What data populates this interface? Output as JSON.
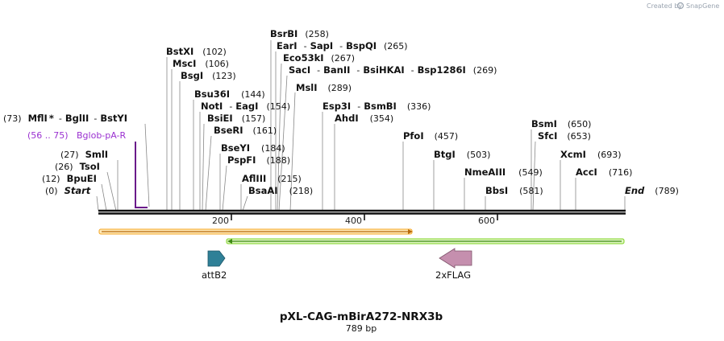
{
  "credit": {
    "text": "Created by",
    "brand": "SnapGene"
  },
  "map": {
    "name": "pXL-CAG-mBirA272-NRX3b",
    "length_label": "789 bp",
    "length": 789,
    "ticks": [
      "200",
      "400",
      "600"
    ]
  },
  "colors": {
    "orf_orange": "#f5a623",
    "orf_green": "#7ed321",
    "attB2": "#2f8097",
    "flag": "#c58fae",
    "feature_purple": "#9a30d0",
    "bracket": "#6a1a8a"
  },
  "sites": {
    "bsrbi": {
      "name": "BsrBI",
      "pos": "(258)"
    },
    "eari": {
      "name": "EarI",
      "pos": "(265)"
    },
    "sapi": {
      "name": "SapI"
    },
    "bspqi": {
      "name": "BspQI"
    },
    "eco53ki": {
      "name": "Eco53kI",
      "pos": "(267)"
    },
    "saci": {
      "name": "SacI",
      "pos": "(269)"
    },
    "banii": {
      "name": "BanII"
    },
    "bsihkai": {
      "name": "BsiHKAI"
    },
    "bsp1286i": {
      "name": "Bsp1286I"
    },
    "bstxi": {
      "name": "BstXI",
      "pos": "(102)"
    },
    "msci": {
      "name": "MscI",
      "pos": "(106)"
    },
    "msli": {
      "name": "MslI",
      "pos": "(289)"
    },
    "bsgi": {
      "name": "BsgI",
      "pos": "(123)"
    },
    "bsu36i": {
      "name": "Bsu36I",
      "pos": "(144)"
    },
    "noti": {
      "name": "NotI",
      "pos": "(154)"
    },
    "eagi": {
      "name": "EagI"
    },
    "esp3i": {
      "name": "Esp3I",
      "pos": "(336)"
    },
    "bsmbi": {
      "name": "BsmBI"
    },
    "mfli": {
      "name": "MflI",
      "pos": "(73)",
      "star": "*"
    },
    "bglii": {
      "name": "BglII"
    },
    "bstyi": {
      "name": "BstYI"
    },
    "bsiei": {
      "name": "BsiEI",
      "pos": "(157)"
    },
    "ahdi": {
      "name": "AhdI",
      "pos": "(354)"
    },
    "bseri": {
      "name": "BseRI",
      "pos": "(161)"
    },
    "bsmi": {
      "name": "BsmI",
      "pos": "(650)"
    },
    "pfoi": {
      "name": "PfoI",
      "pos": "(457)"
    },
    "sfci": {
      "name": "SfcI",
      "pos": "(653)"
    },
    "bseyi": {
      "name": "BseYI",
      "pos": "(184)"
    },
    "smli": {
      "name": "SmlI",
      "pos": "(27)"
    },
    "btgi": {
      "name": "BtgI",
      "pos": "(503)"
    },
    "xcmi": {
      "name": "XcmI",
      "pos": "(693)"
    },
    "pspfi": {
      "name": "PspFI",
      "pos": "(188)"
    },
    "tsoi": {
      "name": "TsoI",
      "pos": "(26)"
    },
    "nmeaiii": {
      "name": "NmeAIII",
      "pos": "(549)"
    },
    "acci": {
      "name": "AccI",
      "pos": "(716)"
    },
    "afliii": {
      "name": "AflIII",
      "pos": "(215)"
    },
    "bpuei": {
      "name": "BpuEI",
      "pos": "(12)"
    },
    "bsaai": {
      "name": "BsaAI",
      "pos": "(218)"
    },
    "bbsi": {
      "name": "BbsI",
      "pos": "(581)"
    },
    "start": {
      "name": "Start",
      "pos": "(0)"
    },
    "end": {
      "name": "End",
      "pos": "(789)"
    }
  },
  "features": {
    "bglob": {
      "name": "Bglob-pA-R",
      "range": "(56 .. 75)"
    },
    "attb2": {
      "name": "attB2"
    },
    "flag": {
      "name": "2xFLAG"
    }
  }
}
